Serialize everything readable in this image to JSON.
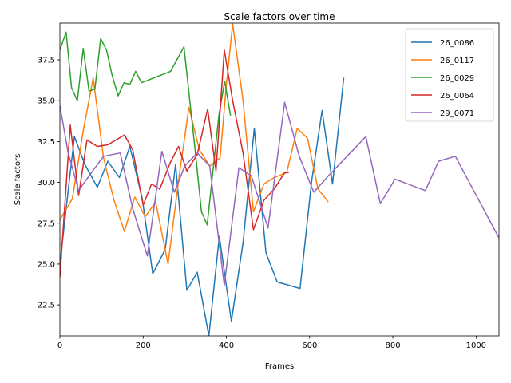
{
  "chart_data": {
    "type": "line",
    "title": "Scale factors over time",
    "xlabel": "Frames",
    "ylabel": "Scale factors",
    "xlim": [
      0,
      1055
    ],
    "ylim": [
      20.6,
      39.75
    ],
    "xticks": [
      0,
      200,
      400,
      600,
      800,
      1000
    ],
    "yticks": [
      22.5,
      25.0,
      27.5,
      30.0,
      32.5,
      35.0,
      37.5
    ],
    "ytick_labels": [
      "22.5",
      "25.0",
      "27.5",
      "30.0",
      "32.5",
      "35.0",
      "37.5"
    ],
    "grid": false,
    "legend_position": "top-right",
    "series": [
      {
        "name": "26_0086",
        "color": "#1f77b4",
        "x": [
          0,
          20,
          35,
          60,
          90,
          115,
          143,
          168,
          198,
          223,
          253,
          278,
          305,
          330,
          358,
          383,
          412,
          440,
          467,
          495,
          522,
          550,
          577,
          605,
          630,
          655,
          682
        ],
        "y": [
          25.0,
          29.5,
          32.8,
          31.1,
          29.7,
          31.3,
          30.3,
          32.2,
          29.0,
          24.4,
          25.9,
          31.1,
          23.4,
          24.5,
          20.6,
          26.7,
          21.5,
          26.3,
          33.3,
          25.7,
          23.9,
          23.7,
          23.5,
          30.1,
          34.4,
          29.9,
          36.4
        ]
      },
      {
        "name": "26_0117",
        "color": "#ff7f0e",
        "x": [
          0,
          30,
          55,
          80,
          105,
          130,
          155,
          180,
          205,
          230,
          260,
          285,
          310,
          335,
          360,
          385,
          400,
          415,
          440,
          465,
          490,
          515,
          545,
          570,
          595,
          620,
          645
        ],
        "y": [
          27.7,
          29.0,
          33.0,
          36.4,
          31.5,
          28.9,
          27.0,
          29.1,
          27.9,
          28.8,
          25.0,
          30.1,
          34.6,
          32.0,
          31.0,
          31.5,
          36.0,
          39.7,
          35.0,
          28.2,
          29.9,
          30.3,
          30.6,
          33.3,
          32.7,
          29.6,
          28.8
        ]
      },
      {
        "name": "26_0029",
        "color": "#2ca02c",
        "x": [
          0,
          15,
          28,
          42,
          56,
          70,
          84,
          98,
          112,
          126,
          140,
          154,
          168,
          182,
          196,
          266,
          298,
          326,
          340,
          354,
          382,
          396,
          410
        ],
        "y": [
          38.1,
          39.2,
          35.8,
          35.0,
          38.2,
          35.6,
          35.7,
          38.8,
          38.1,
          36.5,
          35.3,
          36.1,
          36.0,
          36.8,
          36.1,
          36.8,
          38.3,
          31.7,
          28.2,
          27.4,
          34.1,
          36.2,
          34.1
        ]
      },
      {
        "name": "26_0064",
        "color": "#d62728",
        "x": [
          0,
          25,
          45,
          65,
          90,
          115,
          155,
          175,
          200,
          220,
          240,
          265,
          285,
          305,
          330,
          355,
          375,
          395,
          415,
          440,
          465,
          490,
          515,
          540,
          550
        ],
        "y": [
          24.2,
          33.5,
          29.2,
          32.6,
          32.2,
          32.3,
          32.9,
          32.0,
          28.6,
          29.9,
          29.6,
          31.2,
          32.2,
          30.7,
          31.7,
          34.5,
          30.7,
          38.1,
          35.0,
          31.8,
          27.1,
          28.9,
          29.6,
          30.6,
          30.6
        ]
      },
      {
        "name": "29_0071",
        "color": "#9467bd",
        "x": [
          0,
          20,
          45,
          70,
          105,
          145,
          175,
          210,
          245,
          275,
          300,
          330,
          360,
          395,
          430,
          460,
          500,
          540,
          575,
          610,
          645,
          735,
          770,
          805,
          878,
          910,
          950,
          1055
        ],
        "y": [
          34.7,
          31.8,
          29.5,
          30.4,
          31.6,
          31.8,
          28.4,
          25.5,
          31.9,
          29.4,
          31.0,
          31.8,
          31.0,
          23.7,
          30.9,
          30.4,
          27.2,
          34.9,
          31.6,
          29.4,
          30.4,
          32.8,
          28.7,
          30.2,
          29.5,
          31.3,
          31.6,
          26.6
        ]
      }
    ]
  }
}
